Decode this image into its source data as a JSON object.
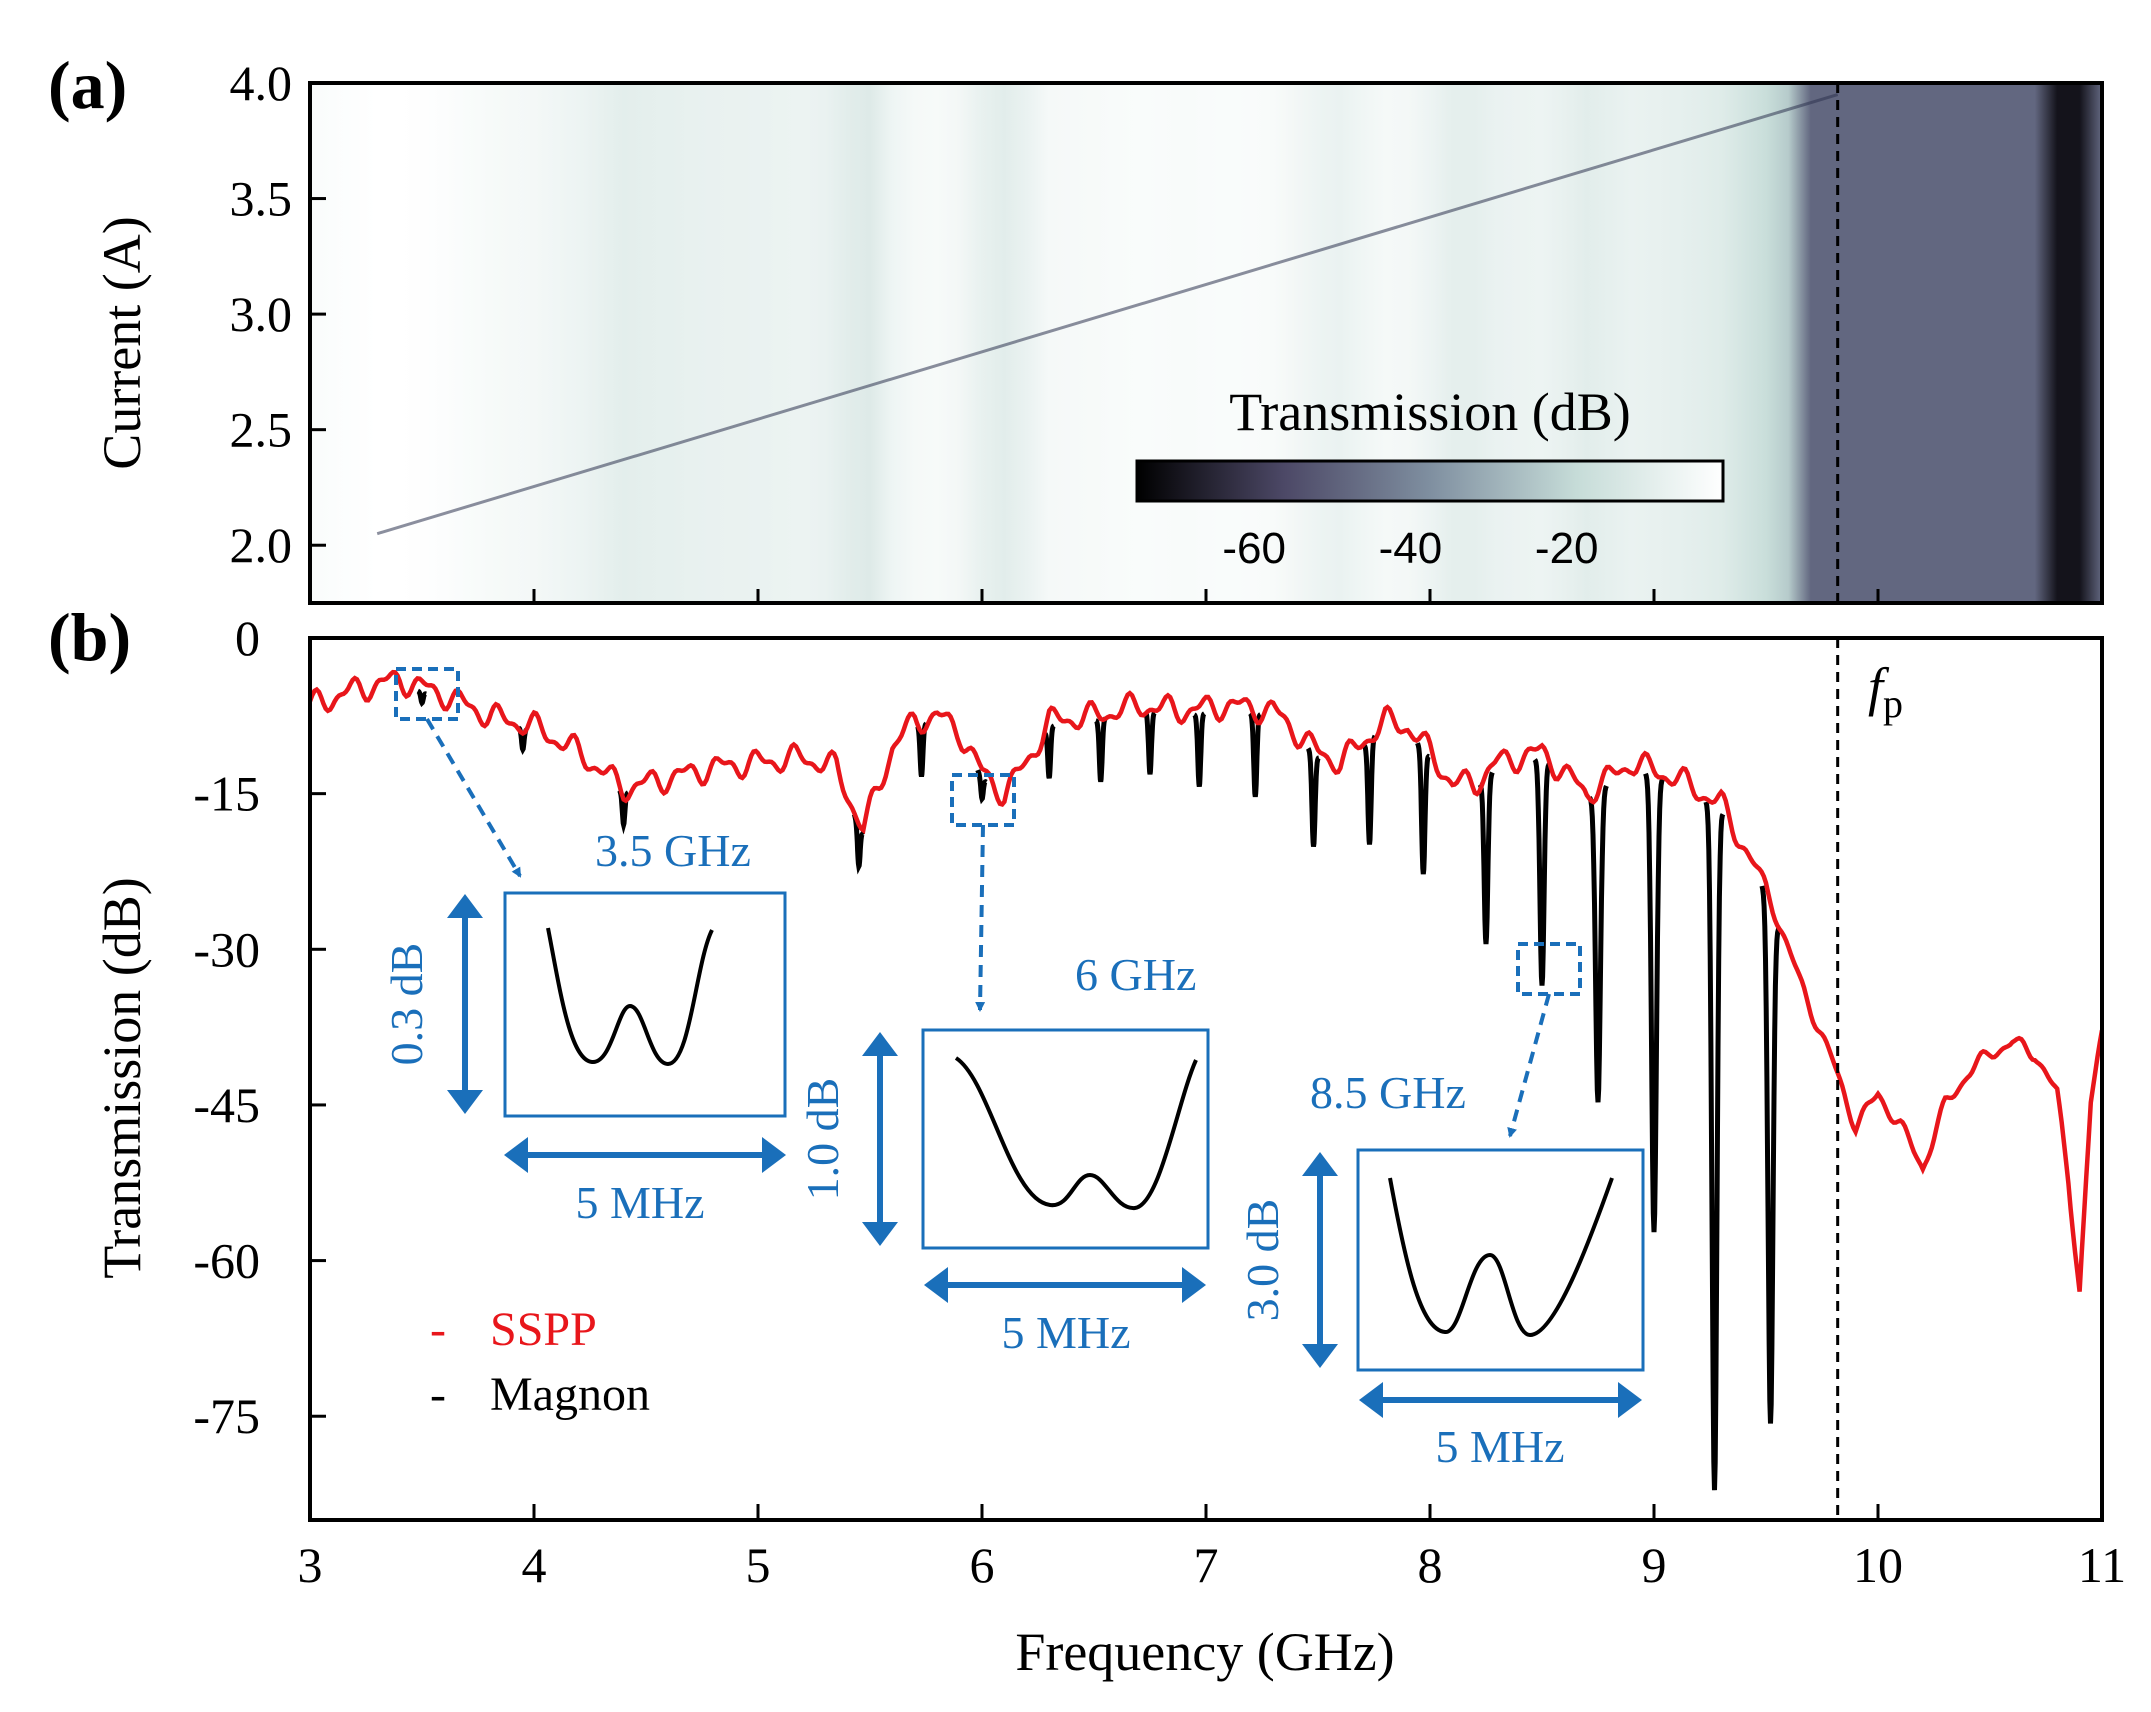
{
  "figure": {
    "panel_a_label": "(a)",
    "panel_b_label": "(b)",
    "fp_label_main": "f",
    "fp_label_sub": "p"
  },
  "colorbar": {
    "title": "Transmission (dB)",
    "ticks": [
      "-60",
      "-40",
      "-20"
    ],
    "tick_values": [
      -60,
      -40,
      -20
    ],
    "range": [
      -75,
      0
    ],
    "colors": [
      "#000000",
      "#4c4866",
      "#7f8fa0",
      "#c6dcd8",
      "#ffffff"
    ]
  },
  "colors": {
    "sspp": "#e8161b",
    "magnon": "#000000",
    "inset": "#1a6fba",
    "fp_line": "#000000"
  },
  "insets": [
    {
      "freq_label": "3.5 GHz",
      "db_label": "0.3 dB",
      "mhz_label": "5 MHz"
    },
    {
      "freq_label": "6 GHz",
      "db_label": "1.0 dB",
      "mhz_label": "5 MHz"
    },
    {
      "freq_label": "8.5 GHz",
      "db_label": "3.0 dB",
      "mhz_label": "5 MHz"
    }
  ],
  "legend": [
    {
      "marker": "-",
      "label": "SSPP",
      "color": "#e8161b"
    },
    {
      "marker": "-",
      "label": "Magnon",
      "color": "#000000"
    }
  ],
  "chart_data": [
    {
      "type": "heatmap",
      "panel": "a",
      "title": "",
      "xlabel": "",
      "ylabel": "Current (A)",
      "xlim": [
        3,
        11
      ],
      "ylim": [
        1.75,
        4.0
      ],
      "yticks": [
        2.0,
        2.5,
        3.0,
        3.5,
        4.0
      ],
      "ytick_labels": [
        "2.0",
        "2.5",
        "3.0",
        "3.5",
        "4.0"
      ],
      "colorbar_label": "Transmission (dB)",
      "vertical_line_freq": 9.82,
      "magnon_line": {
        "f_start": 3.3,
        "current_start": 2.05,
        "f_end": 9.82,
        "current_end": 3.95
      }
    },
    {
      "type": "line",
      "panel": "b",
      "title": "",
      "xlabel": "Frequency (GHz)",
      "ylabel": "Transmission (dB)",
      "xlim": [
        3,
        11
      ],
      "ylim": [
        -85,
        0
      ],
      "xticks": [
        3,
        4,
        5,
        6,
        7,
        8,
        9,
        10,
        11
      ],
      "xtick_labels": [
        "3",
        "4",
        "5",
        "6",
        "7",
        "8",
        "9",
        "10",
        "11"
      ],
      "yticks": [
        0,
        -15,
        -30,
        -45,
        -60,
        -75
      ],
      "ytick_labels": [
        "0",
        "-15",
        "-30",
        "-45",
        "-60",
        "-75"
      ],
      "vertical_line_freq": 9.82,
      "vertical_line_label": "fp",
      "series": [
        {
          "name": "SSPP",
          "color": "#e8161b",
          "x": [
            3.0,
            3.2,
            3.4,
            3.6,
            3.8,
            4.0,
            4.2,
            4.4,
            4.6,
            4.8,
            5.0,
            5.2,
            5.35,
            5.47,
            5.6,
            5.7,
            5.8,
            5.9,
            6.0,
            6.1,
            6.2,
            6.3,
            6.5,
            6.7,
            6.9,
            7.1,
            7.3,
            7.5,
            7.6,
            7.8,
            7.9,
            8.0,
            8.1,
            8.2,
            8.3,
            8.5,
            8.7,
            8.9,
            9.1,
            9.3,
            9.5,
            9.65,
            9.8,
            9.9,
            10.0,
            10.1,
            10.2,
            10.3,
            10.4,
            10.5,
            10.6,
            10.7,
            10.8,
            10.85,
            10.9,
            10.95,
            11.0
          ],
          "y": [
            -6.5,
            -5.0,
            -4.0,
            -5.5,
            -7.5,
            -8.5,
            -11.0,
            -14.5,
            -13.5,
            -12.5,
            -12.0,
            -11.5,
            -12.5,
            -18.5,
            -10.5,
            -8.0,
            -7.5,
            -9.0,
            -13.0,
            -15.0,
            -12.0,
            -8.0,
            -7.5,
            -6.5,
            -7.0,
            -6.5,
            -7.0,
            -11.0,
            -12.0,
            -8.0,
            -8.5,
            -11.0,
            -14.0,
            -14.0,
            -12.0,
            -11.0,
            -15.0,
            -12.0,
            -13.5,
            -16.0,
            -24.0,
            -33.0,
            -41.0,
            -47.0,
            -44.0,
            -47.0,
            -51.0,
            -45.0,
            -42.0,
            -40.0,
            -39.0,
            -40.0,
            -44.0,
            -52.0,
            -63.0,
            -45.0,
            -38.0
          ]
        },
        {
          "name": "Magnon",
          "color": "#000000",
          "dips": [
            {
              "freq": 3.5,
              "depth": 1.0
            },
            {
              "freq": 3.95,
              "depth": 2.0
            },
            {
              "freq": 4.4,
              "depth": 3.0
            },
            {
              "freq": 5.45,
              "depth": 4.0
            },
            {
              "freq": 5.73,
              "depth": 5.0
            },
            {
              "freq": 6.0,
              "depth": 2.0
            },
            {
              "freq": 6.3,
              "depth": 5.0
            },
            {
              "freq": 6.53,
              "depth": 6.0
            },
            {
              "freq": 6.75,
              "depth": 6.0
            },
            {
              "freq": 6.97,
              "depth": 7.0
            },
            {
              "freq": 7.22,
              "depth": 8.0
            },
            {
              "freq": 7.48,
              "depth": 9.0
            },
            {
              "freq": 7.73,
              "depth": 10.0
            },
            {
              "freq": 7.97,
              "depth": 12.0
            },
            {
              "freq": 8.25,
              "depth": 16.0
            },
            {
              "freq": 8.5,
              "depth": 22.0
            },
            {
              "freq": 8.75,
              "depth": 30.0
            },
            {
              "freq": 9.0,
              "depth": 44.0
            },
            {
              "freq": 9.27,
              "depth": 66.0
            },
            {
              "freq": 9.52,
              "depth": 50.0
            }
          ]
        }
      ]
    }
  ]
}
